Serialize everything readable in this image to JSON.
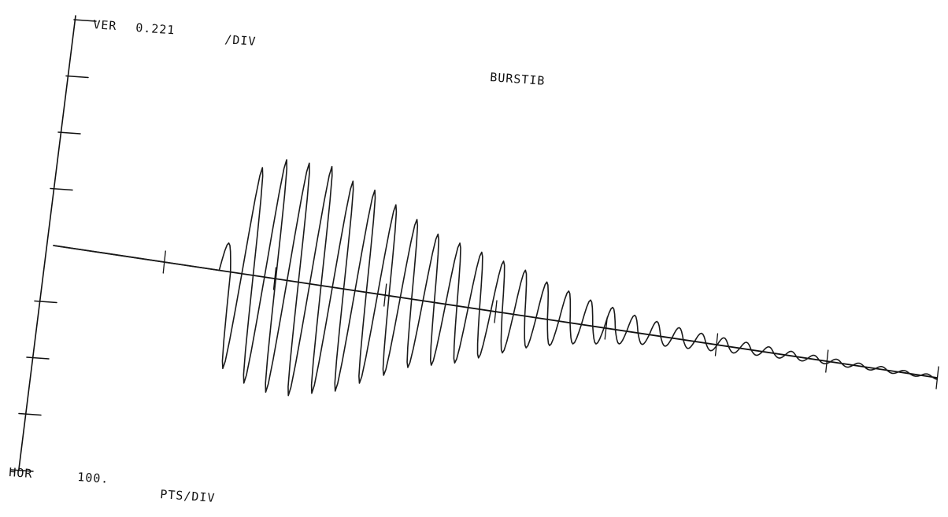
{
  "chart_data": {
    "type": "line",
    "title": "BURSTIB",
    "xlabel": "",
    "ylabel": "",
    "axis_readouts": {
      "vertical": {
        "tag": "VER",
        "value": "0.221",
        "unit": "/DIV"
      },
      "horizontal": {
        "tag": "HOR",
        "value": "100.",
        "unit": "PTS/DIV"
      }
    },
    "x_unit": "points",
    "y_unit": "divisions",
    "xlim": [
      0,
      800
    ],
    "ylim": [
      -4,
      4
    ],
    "grid": false,
    "legend": "none",
    "signal": {
      "type": "damped-sine-burst",
      "start_point": 150,
      "end_point": 800,
      "cycle_points": 20.5,
      "peaks": [
        0.5,
        1.9,
        2.1,
        2.1,
        2.1,
        1.9,
        1.8,
        1.6,
        1.4,
        1.2,
        1.1,
        1.0,
        0.9,
        0.8,
        0.65,
        0.55,
        0.45,
        0.38,
        0.3,
        0.25,
        0.2,
        0.16,
        0.14,
        0.12,
        0.1,
        0.08,
        0.07,
        0.06,
        0.05,
        0.05,
        0.04,
        0.04
      ],
      "troughs": [
        -1.7,
        -1.9,
        -2.0,
        -2.0,
        -1.9,
        -1.8,
        -1.6,
        -1.4,
        -1.2,
        -1.1,
        -1.0,
        -0.85,
        -0.7,
        -0.55,
        -0.45,
        -0.36,
        -0.3,
        -0.24,
        -0.19,
        -0.16,
        -0.14,
        -0.12,
        -0.1,
        -0.08,
        -0.07,
        -0.06,
        -0.05,
        -0.05,
        -0.04,
        -0.04,
        -0.03,
        -0.03
      ]
    },
    "axes_color": "#111111",
    "trace_color": "#1a1a1a"
  }
}
